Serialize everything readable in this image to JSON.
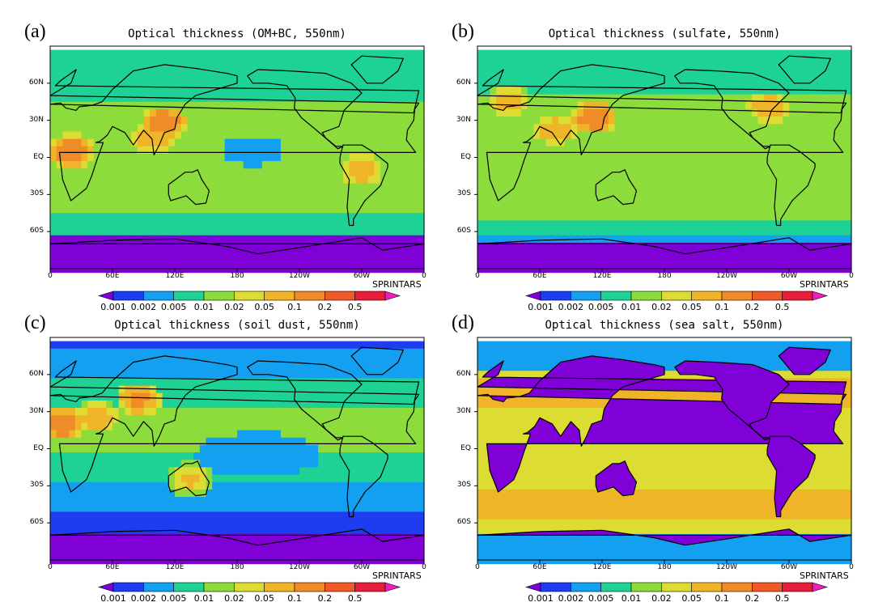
{
  "panels": [
    {
      "label": "(a)",
      "title": "Optical thickness (OM+BC, 550nm)",
      "species": "om_bc",
      "hotspots": [
        {
          "lon": 110,
          "lat": 28,
          "level": 7.5
        },
        {
          "lon": 20,
          "lat": 5,
          "level": 7.5
        },
        {
          "lon": 300,
          "lat": -10,
          "level": 6.5
        },
        {
          "lon": 100,
          "lat": 15,
          "level": 6.5
        }
      ]
    },
    {
      "label": "(b)",
      "title": "Optical thickness (sulfate, 550nm)",
      "species": "sulfate",
      "hotspots": [
        {
          "lon": 112,
          "lat": 32,
          "level": 7.5
        },
        {
          "lon": 30,
          "lat": 45,
          "level": 6.5
        },
        {
          "lon": 280,
          "lat": 40,
          "level": 6.5
        },
        {
          "lon": 75,
          "lat": 22,
          "level": 6.5
        }
      ]
    },
    {
      "label": "(c)",
      "title": "Optical thickness (soil dust, 550nm)",
      "species": "dust",
      "hotspots": [
        {
          "lon": 10,
          "lat": 20,
          "level": 7.5
        },
        {
          "lon": 45,
          "lat": 25,
          "level": 6.5
        },
        {
          "lon": 85,
          "lat": 40,
          "level": 7
        },
        {
          "lon": 135,
          "lat": -25,
          "level": 6
        }
      ]
    },
    {
      "label": "(d)",
      "title": "Optical thickness (sea salt, 550nm)",
      "species": "seasalt",
      "hotspots": [
        {
          "lon": 180,
          "lat": -45,
          "level": 6
        },
        {
          "lon": 30,
          "lat": -45,
          "level": 6
        }
      ]
    }
  ],
  "axes": {
    "y_ticks": [
      {
        "label": "60N",
        "lat": 60
      },
      {
        "label": "30N",
        "lat": 30
      },
      {
        "label": "EQ",
        "lat": 0
      },
      {
        "label": "30S",
        "lat": -30
      },
      {
        "label": "60S",
        "lat": -60
      }
    ],
    "x_ticks": [
      {
        "label": "0",
        "lon": 0
      },
      {
        "label": "60E",
        "lon": 60
      },
      {
        "label": "120E",
        "lon": 120
      },
      {
        "label": "180",
        "lon": 180
      },
      {
        "label": "120W",
        "lon": 240
      },
      {
        "label": "60W",
        "lon": 300
      },
      {
        "label": "0",
        "lon": 360
      }
    ],
    "lon_range": [
      0,
      360
    ],
    "lat_range": [
      -90,
      90
    ]
  },
  "credit": "SPRINTARS",
  "colorbar": {
    "labels": [
      "0.001",
      "0.002",
      "0.005",
      "0.01",
      "0.02",
      "0.05",
      "0.1",
      "0.2",
      "0.5"
    ],
    "colors": [
      "#8000d8",
      "#1e3cf0",
      "#14a0f0",
      "#1ed296",
      "#8cdc3c",
      "#dcdc32",
      "#f0b428",
      "#f08c28",
      "#f05a28",
      "#e61e3c",
      "#f01ebe"
    ]
  },
  "land_color": "#000000"
}
